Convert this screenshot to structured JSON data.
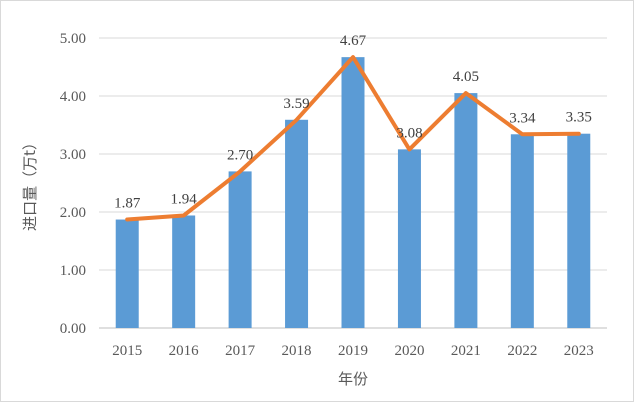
{
  "chart_data": {
    "type": "bar",
    "categories": [
      "2015",
      "2016",
      "2017",
      "2018",
      "2019",
      "2020",
      "2021",
      "2022",
      "2023"
    ],
    "values": [
      1.87,
      1.94,
      2.7,
      3.59,
      4.67,
      3.08,
      4.05,
      3.34,
      3.35
    ],
    "data_labels": [
      "1.87",
      "1.94",
      "2.70",
      "3.59",
      "4.67",
      "3.08",
      "4.05",
      "3.34",
      "3.35"
    ],
    "overlay_line": {
      "values": [
        1.87,
        1.94,
        2.7,
        3.59,
        4.67,
        3.08,
        4.05,
        3.34,
        3.35
      ]
    },
    "title": "",
    "xlabel": "年份",
    "ylabel": "进口量（万t）",
    "ylim": [
      0,
      5
    ],
    "yticks": [
      "0.00",
      "1.00",
      "2.00",
      "3.00",
      "4.00",
      "5.00"
    ],
    "grid": true,
    "colors": {
      "bar": "#5b9bd5",
      "line": "#ed7d31",
      "grid": "#d9d9d9",
      "axis": "#bfbfbf"
    }
  }
}
